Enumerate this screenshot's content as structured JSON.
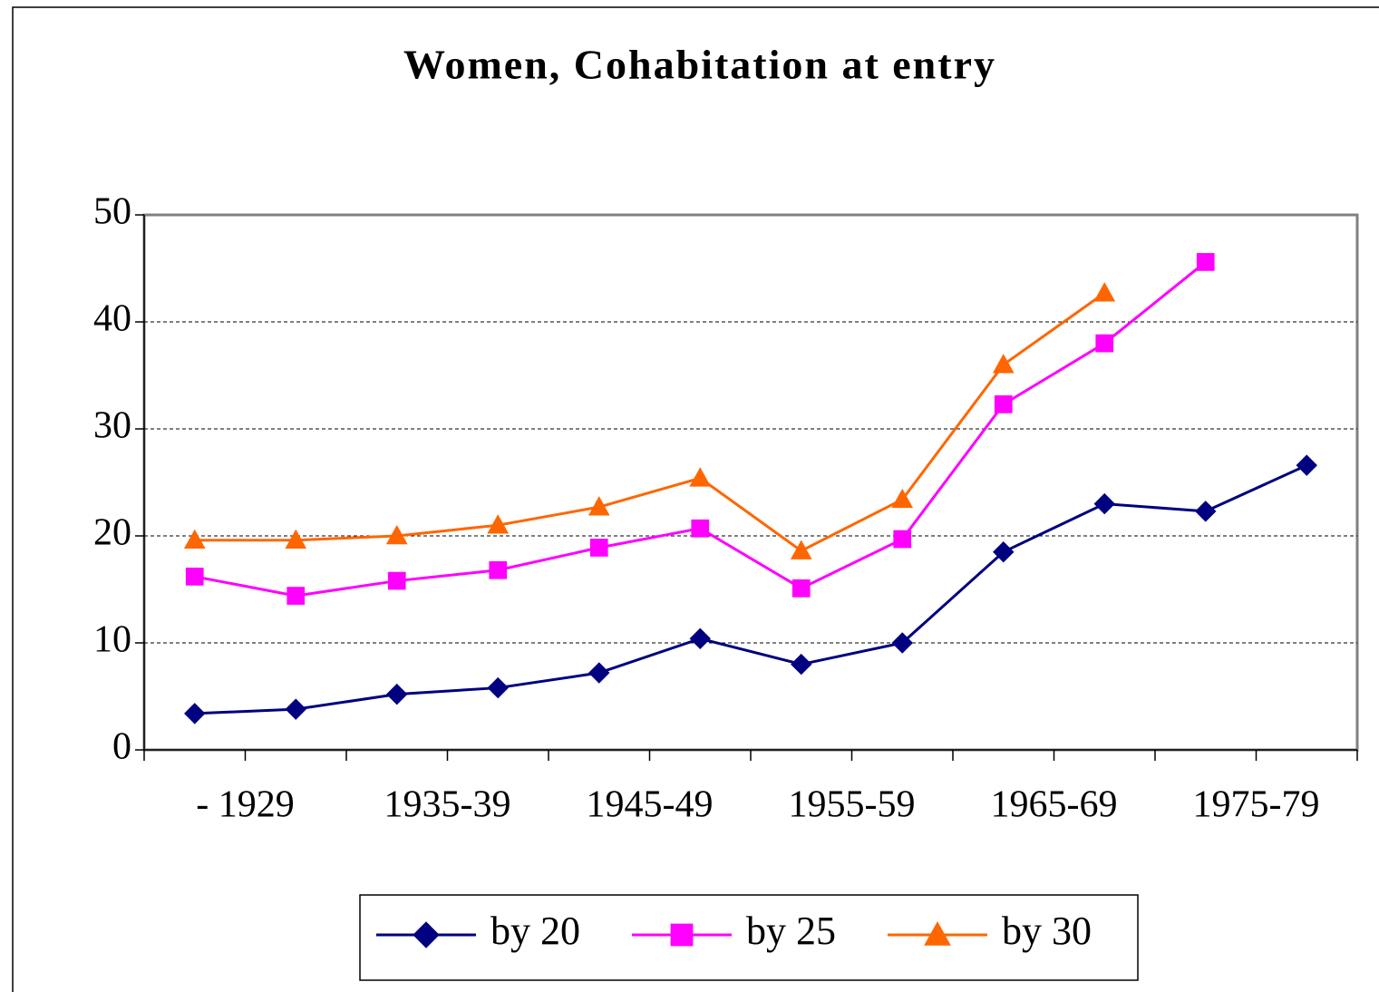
{
  "chart_data": {
    "type": "line",
    "title": "Women, Cohabitation at entry",
    "categories": [
      "- 1929",
      null,
      "1935-39",
      null,
      "1945-49",
      null,
      "1955-59",
      null,
      "1965-69",
      null,
      "1975-79",
      null
    ],
    "series": [
      {
        "name": "by 20",
        "color": "#000080",
        "marker": "diamond",
        "values": [
          3.4,
          3.8,
          5.2,
          5.8,
          7.2,
          10.4,
          8.0,
          10.0,
          18.5,
          23.0,
          22.3,
          26.6
        ]
      },
      {
        "name": "by 25",
        "color": "#ff00ff",
        "marker": "square",
        "values": [
          16.2,
          14.4,
          15.8,
          16.8,
          18.9,
          20.7,
          15.1,
          19.7,
          32.3,
          38.0,
          45.6,
          null
        ]
      },
      {
        "name": "by 30",
        "color": "#ff6600",
        "marker": "triangle",
        "values": [
          19.6,
          19.6,
          20.0,
          21.0,
          22.7,
          25.4,
          18.6,
          23.4,
          36.0,
          42.7,
          null,
          null
        ]
      }
    ],
    "ylim": [
      0,
      50
    ],
    "yticks": [
      0,
      10,
      20,
      30,
      40,
      50
    ],
    "grid": true,
    "legend": "bottom"
  }
}
